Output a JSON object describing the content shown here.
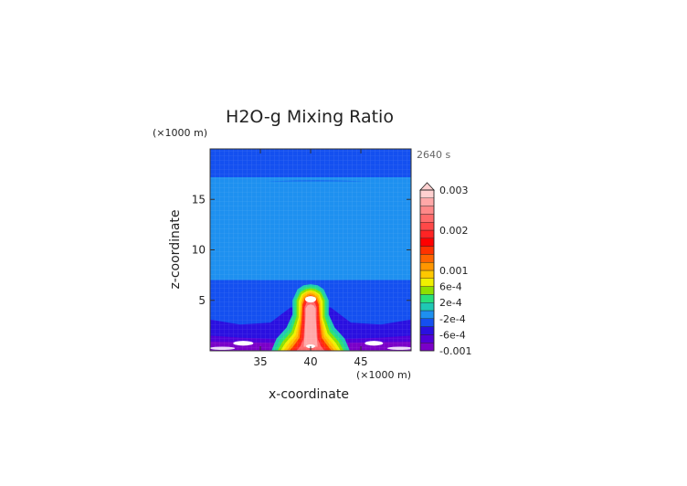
{
  "chart_data": {
    "type": "heatmap",
    "title": "H2O-g Mixing Ratio",
    "xlabel": "x-coordinate",
    "ylabel": "z-coordinate",
    "x_unit": "(×1000 m)",
    "y_unit": "(×1000 m)",
    "time_label": "2640 s",
    "xlim": [
      30,
      50
    ],
    "ylim": [
      0,
      20
    ],
    "x_ticks": [
      35,
      40,
      45
    ],
    "y_ticks": [
      5,
      10,
      15
    ],
    "colorbar": {
      "tick_labels": [
        "0.003",
        "0.002",
        "0.001",
        "6e-4",
        "2e-4",
        "-2e-4",
        "-6e-4",
        "-0.001"
      ],
      "tick_values": [
        0.003,
        0.002,
        0.001,
        0.0006,
        0.0002,
        -0.0002,
        -0.0006,
        -0.001
      ],
      "levels": [
        -0.001,
        -0.0008,
        -0.0006,
        -0.0004,
        -0.0002,
        0,
        0.0002,
        0.0004,
        0.0006,
        0.0008,
        0.001,
        0.0012,
        0.0014,
        0.0016,
        0.0018,
        0.002,
        0.0022,
        0.0024,
        0.0026,
        0.0028,
        0.003
      ],
      "colors": [
        "#7a00c8",
        "#5000d8",
        "#2a10e0",
        "#1450f0",
        "#1e90f0",
        "#1fc8b4",
        "#28e07a",
        "#8ee000",
        "#f0f000",
        "#ffc800",
        "#ff9600",
        "#ff6400",
        "#ff3200",
        "#ff0000",
        "#ff2424",
        "#ff4848",
        "#ff6a6a",
        "#ff8888",
        "#ffa8a8",
        "#ffd0d0"
      ],
      "extend": "max"
    },
    "regions": [
      {
        "name": "upper layer",
        "z_from": 16.8,
        "z_to": 20,
        "value": -0.0003
      },
      {
        "name": "middle layer",
        "z_from": 7,
        "z_to": 16.8,
        "value": -0.0001
      },
      {
        "name": "lower layer",
        "z_from": 2,
        "z_to": 7,
        "value": -0.0003
      },
      {
        "name": "plume core",
        "x_center": 40,
        "z_top": 6.4,
        "value_max": 0.003
      },
      {
        "name": "near-surface minima",
        "x": [
          33.5,
          46
        ],
        "z": 0.7,
        "value": -0.001
      }
    ]
  }
}
